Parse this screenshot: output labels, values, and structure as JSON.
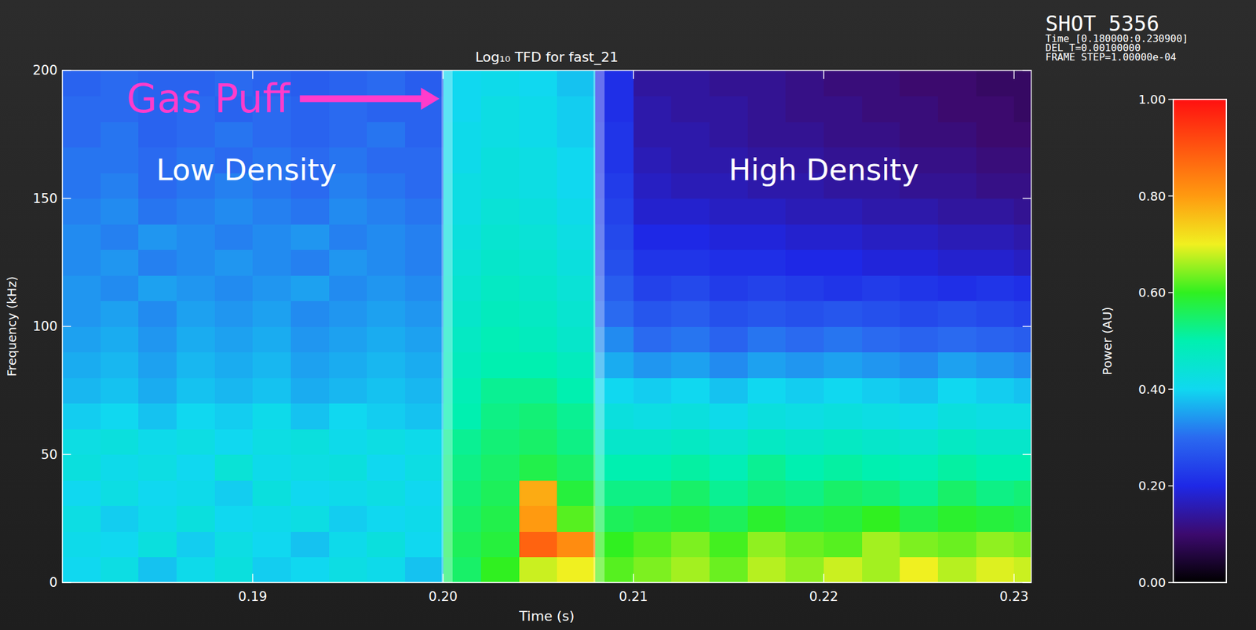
{
  "chart_data": {
    "type": "heatmap",
    "title": "Log₁₀ TFD for fast_21",
    "info": [
      "SHOT 5356",
      "Time [0.180000:0.230900]",
      "DEL_T=0.00100000",
      "FRAME STEP=1.00000e-04"
    ],
    "x_label": "Time (s)",
    "y_label": "Frequency (kHz)",
    "xlim": [
      0.18,
      0.2309
    ],
    "ylim": [
      0,
      200
    ],
    "xticks": [
      0.19,
      {
        "value": 0.2,
        "label": "0.20"
      },
      0.21,
      0.22,
      0.23
    ],
    "yticks": [
      0,
      50,
      100,
      150,
      200
    ],
    "annotations": [
      {
        "text": "Gas Puff"
      },
      {
        "text": "Low Density"
      },
      {
        "text": "High Density"
      }
    ],
    "vlines": [
      0.2002,
      0.2082
    ],
    "x_bins": [
      0.18,
      0.182,
      0.184,
      0.186,
      0.188,
      0.19,
      0.192,
      0.194,
      0.196,
      0.198,
      0.2,
      0.202,
      0.204,
      0.206,
      0.208,
      0.21,
      0.212,
      0.214,
      0.216,
      0.218,
      0.22,
      0.222,
      0.224,
      0.226,
      0.228,
      0.23,
      0.2309
    ],
    "y_bins": [
      0,
      10,
      20,
      30,
      40,
      50,
      60,
      70,
      80,
      90,
      100,
      110,
      120,
      130,
      140,
      150,
      160,
      170,
      180,
      190,
      200
    ],
    "cells": [
      [
        0.4,
        0.42,
        0.38,
        0.41,
        0.43,
        0.39,
        0.4,
        0.42,
        0.41,
        0.38,
        0.55,
        0.6,
        0.68,
        0.7,
        0.62,
        0.64,
        0.66,
        0.63,
        0.67,
        0.65,
        0.68,
        0.66,
        0.7,
        0.67,
        0.69,
        0.68
      ],
      [
        0.41,
        0.4,
        0.43,
        0.39,
        0.42,
        0.4,
        0.38,
        0.41,
        0.43,
        0.4,
        0.56,
        0.58,
        0.88,
        0.82,
        0.6,
        0.62,
        0.64,
        0.61,
        0.65,
        0.63,
        0.62,
        0.66,
        0.64,
        0.63,
        0.65,
        0.64
      ],
      [
        0.42,
        0.39,
        0.41,
        0.43,
        0.4,
        0.41,
        0.42,
        0.39,
        0.4,
        0.41,
        0.55,
        0.57,
        0.8,
        0.62,
        0.56,
        0.57,
        0.58,
        0.56,
        0.59,
        0.57,
        0.58,
        0.6,
        0.57,
        0.59,
        0.58,
        0.57
      ],
      [
        0.4,
        0.42,
        0.4,
        0.41,
        0.39,
        0.43,
        0.4,
        0.41,
        0.42,
        0.4,
        0.54,
        0.56,
        0.78,
        0.58,
        0.53,
        0.53,
        0.55,
        0.52,
        0.54,
        0.53,
        0.55,
        0.54,
        0.52,
        0.55,
        0.53,
        0.54
      ],
      [
        0.43,
        0.41,
        0.42,
        0.4,
        0.44,
        0.41,
        0.42,
        0.43,
        0.4,
        0.42,
        0.53,
        0.55,
        0.57,
        0.55,
        0.5,
        0.5,
        0.51,
        0.49,
        0.52,
        0.5,
        0.51,
        0.5,
        0.49,
        0.51,
        0.5,
        0.5
      ],
      [
        0.42,
        0.43,
        0.41,
        0.42,
        0.4,
        0.42,
        0.43,
        0.41,
        0.42,
        0.41,
        0.52,
        0.54,
        0.55,
        0.53,
        0.46,
        0.46,
        0.47,
        0.45,
        0.47,
        0.46,
        0.47,
        0.46,
        0.45,
        0.47,
        0.46,
        0.46
      ],
      [
        0.39,
        0.4,
        0.38,
        0.4,
        0.39,
        0.41,
        0.38,
        0.4,
        0.39,
        0.38,
        0.5,
        0.53,
        0.54,
        0.52,
        0.43,
        0.42,
        0.43,
        0.41,
        0.43,
        0.42,
        0.43,
        0.42,
        0.41,
        0.43,
        0.42,
        0.42
      ],
      [
        0.37,
        0.38,
        0.36,
        0.38,
        0.37,
        0.38,
        0.36,
        0.37,
        0.38,
        0.37,
        0.49,
        0.52,
        0.52,
        0.5,
        0.4,
        0.39,
        0.4,
        0.38,
        0.4,
        0.39,
        0.4,
        0.39,
        0.38,
        0.4,
        0.39,
        0.38
      ],
      [
        0.36,
        0.37,
        0.35,
        0.37,
        0.36,
        0.37,
        0.35,
        0.36,
        0.37,
        0.36,
        0.48,
        0.5,
        0.5,
        0.48,
        0.36,
        0.34,
        0.35,
        0.33,
        0.35,
        0.34,
        0.35,
        0.34,
        0.33,
        0.35,
        0.34,
        0.33
      ],
      [
        0.35,
        0.36,
        0.34,
        0.36,
        0.35,
        0.36,
        0.34,
        0.35,
        0.36,
        0.35,
        0.47,
        0.49,
        0.48,
        0.46,
        0.33,
        0.3,
        0.31,
        0.29,
        0.31,
        0.3,
        0.31,
        0.3,
        0.29,
        0.3,
        0.29,
        0.28
      ],
      [
        0.34,
        0.35,
        0.33,
        0.35,
        0.34,
        0.35,
        0.33,
        0.34,
        0.35,
        0.34,
        0.46,
        0.48,
        0.47,
        0.45,
        0.3,
        0.27,
        0.28,
        0.26,
        0.27,
        0.26,
        0.27,
        0.26,
        0.25,
        0.26,
        0.25,
        0.24
      ],
      [
        0.34,
        0.33,
        0.35,
        0.34,
        0.33,
        0.34,
        0.35,
        0.33,
        0.34,
        0.33,
        0.45,
        0.47,
        0.46,
        0.44,
        0.28,
        0.24,
        0.25,
        0.23,
        0.24,
        0.23,
        0.22,
        0.23,
        0.22,
        0.21,
        0.22,
        0.21
      ],
      [
        0.33,
        0.34,
        0.32,
        0.33,
        0.34,
        0.33,
        0.32,
        0.34,
        0.33,
        0.32,
        0.44,
        0.46,
        0.45,
        0.43,
        0.26,
        0.22,
        0.22,
        0.21,
        0.21,
        0.2,
        0.2,
        0.19,
        0.19,
        0.18,
        0.18,
        0.17
      ],
      [
        0.33,
        0.32,
        0.34,
        0.33,
        0.32,
        0.33,
        0.34,
        0.32,
        0.33,
        0.32,
        0.43,
        0.45,
        0.44,
        0.42,
        0.25,
        0.2,
        0.2,
        0.19,
        0.19,
        0.18,
        0.18,
        0.17,
        0.17,
        0.16,
        0.16,
        0.15
      ],
      [
        0.32,
        0.33,
        0.31,
        0.32,
        0.33,
        0.32,
        0.31,
        0.33,
        0.32,
        0.31,
        0.42,
        0.44,
        0.43,
        0.41,
        0.24,
        0.18,
        0.18,
        0.17,
        0.17,
        0.16,
        0.16,
        0.15,
        0.15,
        0.14,
        0.14,
        0.13
      ],
      [
        0.31,
        0.32,
        0.3,
        0.31,
        0.32,
        0.31,
        0.3,
        0.32,
        0.31,
        0.3,
        0.42,
        0.43,
        0.42,
        0.4,
        0.23,
        0.17,
        0.16,
        0.16,
        0.15,
        0.15,
        0.14,
        0.14,
        0.13,
        0.13,
        0.12,
        0.12
      ],
      [
        0.31,
        0.31,
        0.3,
        0.31,
        0.3,
        0.31,
        0.3,
        0.31,
        0.3,
        0.3,
        0.41,
        0.43,
        0.42,
        0.4,
        0.22,
        0.16,
        0.15,
        0.15,
        0.14,
        0.14,
        0.13,
        0.13,
        0.12,
        0.12,
        0.11,
        0.11
      ],
      [
        0.3,
        0.31,
        0.29,
        0.3,
        0.31,
        0.3,
        0.29,
        0.3,
        0.31,
        0.29,
        0.41,
        0.42,
        0.41,
        0.39,
        0.22,
        0.15,
        0.15,
        0.14,
        0.13,
        0.13,
        0.12,
        0.12,
        0.11,
        0.11,
        0.1,
        0.1
      ],
      [
        0.3,
        0.3,
        0.29,
        0.3,
        0.29,
        0.3,
        0.29,
        0.3,
        0.29,
        0.29,
        0.4,
        0.42,
        0.41,
        0.39,
        0.21,
        0.15,
        0.14,
        0.14,
        0.13,
        0.12,
        0.12,
        0.11,
        0.11,
        0.1,
        0.1,
        0.09
      ],
      [
        0.29,
        0.3,
        0.29,
        0.29,
        0.3,
        0.29,
        0.28,
        0.29,
        0.3,
        0.28,
        0.4,
        0.41,
        0.4,
        0.38,
        0.21,
        0.14,
        0.14,
        0.13,
        0.13,
        0.12,
        0.11,
        0.11,
        0.1,
        0.1,
        0.09,
        0.09
      ]
    ],
    "colorbar": {
      "label": "Power (AU)",
      "range": [
        0,
        1
      ],
      "ticks": [
        {
          "value": 0,
          "label": "0.00"
        },
        {
          "value": 0.2,
          "label": "0.20"
        },
        {
          "value": 0.4,
          "label": "0.40"
        },
        {
          "value": 0.6,
          "label": "0.60"
        },
        {
          "value": 0.8,
          "label": "0.80"
        },
        {
          "value": 1,
          "label": "1.00"
        }
      ]
    }
  }
}
